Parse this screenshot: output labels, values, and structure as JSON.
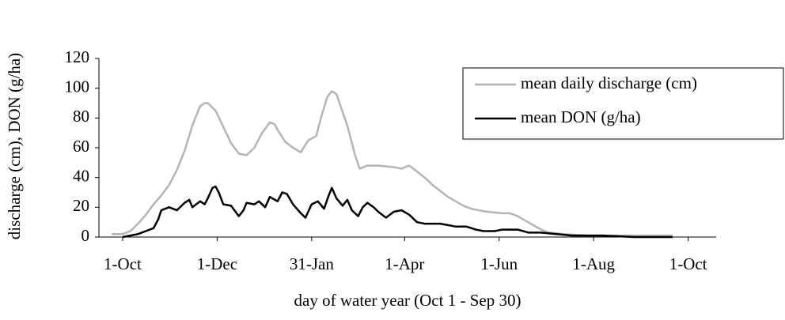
{
  "chart_data": {
    "type": "line",
    "x_label": "day of water year (Oct 1 - Sep 30)",
    "y_label": "discharge (cm), DON (g/ha)",
    "xlim": [
      -15.3,
      380
    ],
    "xticks": [
      {
        "value": 0,
        "label": "1-Oct"
      },
      {
        "value": 61,
        "label": "1-Dec"
      },
      {
        "value": 122,
        "label": "31-Jan"
      },
      {
        "value": 182,
        "label": "1-Apr"
      },
      {
        "value": 243,
        "label": "1-Jun"
      },
      {
        "value": 304,
        "label": "1-Aug"
      },
      {
        "value": 365,
        "label": "1-Oct"
      }
    ],
    "ylim": [
      0,
      120
    ],
    "yticks": [
      0,
      20,
      40,
      60,
      80,
      100,
      120
    ],
    "grid": false,
    "legend": "upper right",
    "series": [
      {
        "name": "mean daily discharge (cm)",
        "color": "#b4b4b4",
        "x": [
          -7,
          0,
          5,
          10,
          15,
          20,
          25,
          30,
          35,
          40,
          45,
          50,
          53,
          55,
          60,
          65,
          70,
          75,
          80,
          85,
          90,
          95,
          98,
          100,
          105,
          110,
          115,
          118,
          120,
          125,
          128,
          132,
          135,
          138,
          140,
          145,
          150,
          153,
          158,
          165,
          175,
          180,
          185,
          190,
          195,
          200,
          205,
          210,
          215,
          220,
          225,
          230,
          235,
          245,
          250,
          255,
          260,
          265,
          270,
          275,
          285,
          300,
          320,
          340,
          355
        ],
        "values": [
          2,
          2,
          4,
          9,
          15,
          22,
          28,
          35,
          45,
          58,
          75,
          88,
          90,
          90,
          85,
          74,
          63,
          56,
          55,
          60,
          70,
          77,
          76,
          72,
          64,
          60,
          57,
          62,
          65,
          68,
          80,
          94,
          98,
          96,
          90,
          75,
          55,
          46,
          48,
          48,
          47,
          46,
          48,
          44,
          40,
          35,
          31,
          27,
          24,
          21,
          19,
          18,
          17,
          16,
          16,
          14,
          11,
          8,
          5,
          3,
          2,
          1,
          1,
          1,
          1
        ]
      },
      {
        "name": "mean DON (g/ha)",
        "color": "#000000",
        "x": [
          0,
          5,
          10,
          15,
          20,
          23,
          25,
          30,
          35,
          40,
          43,
          45,
          50,
          53,
          55,
          58,
          60,
          62,
          65,
          70,
          75,
          78,
          80,
          85,
          88,
          92,
          95,
          100,
          103,
          106,
          110,
          115,
          118,
          122,
          126,
          130,
          133,
          135,
          138,
          142,
          145,
          148,
          152,
          155,
          158,
          162,
          165,
          170,
          175,
          180,
          185,
          190,
          195,
          205,
          210,
          215,
          222,
          228,
          233,
          240,
          245,
          255,
          262,
          270,
          280,
          290,
          310,
          330,
          355
        ],
        "values": [
          0,
          1,
          2,
          4,
          6,
          12,
          18,
          20,
          18,
          23,
          25,
          20,
          24,
          22,
          26,
          33,
          34,
          30,
          22,
          21,
          14,
          18,
          23,
          22,
          24,
          20,
          27,
          24,
          30,
          29,
          22,
          16,
          13,
          22,
          24,
          19,
          28,
          33,
          26,
          21,
          25,
          18,
          14,
          20,
          23,
          20,
          17,
          13,
          17,
          18,
          15,
          10,
          9,
          9,
          8,
          7,
          7,
          5,
          4,
          4,
          5,
          5,
          3,
          3,
          2,
          1,
          1,
          0,
          0
        ]
      }
    ]
  }
}
